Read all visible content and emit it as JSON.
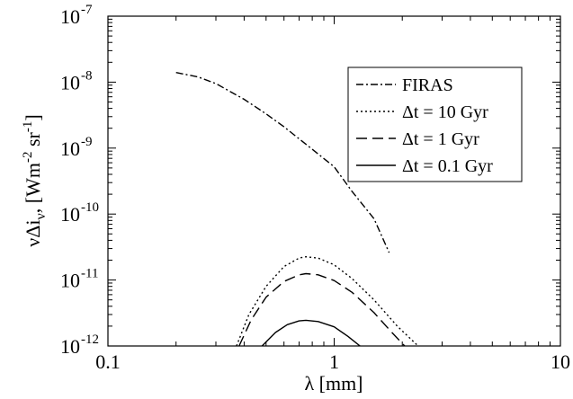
{
  "chart_data": {
    "type": "line",
    "xscale": "log",
    "yscale": "log",
    "xlim": [
      0.1,
      10
    ],
    "ylim": [
      1e-12,
      1e-07
    ],
    "xlabel": "λ [mm]",
    "ylabel": {
      "base": "νΔi",
      "sub": "ν",
      "unit_open": ", [Wm",
      "sup1": "-2",
      "unit_mid": " sr",
      "sup2": "-1",
      "unit_close": "]"
    },
    "x_ticks": [
      {
        "value": 0.1,
        "label": "0.1"
      },
      {
        "value": 1,
        "label": "1"
      },
      {
        "value": 10,
        "label": "10"
      }
    ],
    "y_ticks": [
      {
        "value": 1e-12,
        "exp": "-12"
      },
      {
        "value": 1e-11,
        "exp": "-11"
      },
      {
        "value": 1e-10,
        "exp": "-10"
      },
      {
        "value": 1e-09,
        "exp": "-9"
      },
      {
        "value": 1e-08,
        "exp": "-8"
      },
      {
        "value": 1e-07,
        "exp": "-7"
      }
    ],
    "y_tick_base": "10",
    "grid": false,
    "legend_position": "top-right",
    "series": [
      {
        "name": "FIRAS",
        "dash": "dashdot",
        "points": [
          [
            0.2,
            1.4e-08
          ],
          [
            0.25,
            1.2e-08
          ],
          [
            0.3,
            9.5e-09
          ],
          [
            0.4,
            5.5e-09
          ],
          [
            0.5,
            3.3e-09
          ],
          [
            0.6,
            2.1e-09
          ],
          [
            0.8,
            9.6e-10
          ],
          [
            1.0,
            5.2e-10
          ],
          [
            1.2,
            2.2e-10
          ],
          [
            1.5,
            8.5e-11
          ],
          [
            1.75,
            2.6e-11
          ]
        ]
      },
      {
        "name": "Δt = 10 Gyr",
        "dash": "dotted",
        "points": [
          [
            0.37,
            1e-12
          ],
          [
            0.42,
            3e-12
          ],
          [
            0.5,
            8e-12
          ],
          [
            0.6,
            1.6e-11
          ],
          [
            0.7,
            2.15e-11
          ],
          [
            0.75,
            2.25e-11
          ],
          [
            0.85,
            2.15e-11
          ],
          [
            1.0,
            1.7e-11
          ],
          [
            1.2,
            1.05e-11
          ],
          [
            1.5,
            5e-12
          ],
          [
            1.9,
            2e-12
          ],
          [
            2.35,
            1e-12
          ]
        ]
      },
      {
        "name": "Δt = 1 Gyr",
        "dash": "dashed",
        "points": [
          [
            0.38,
            1e-12
          ],
          [
            0.43,
            2.5e-12
          ],
          [
            0.5,
            5.5e-12
          ],
          [
            0.6,
            9.5e-12
          ],
          [
            0.7,
            1.2e-11
          ],
          [
            0.75,
            1.25e-11
          ],
          [
            0.85,
            1.2e-11
          ],
          [
            1.0,
            9.8e-12
          ],
          [
            1.2,
            6.5e-12
          ],
          [
            1.5,
            3.2e-12
          ],
          [
            1.8,
            1.6e-12
          ],
          [
            2.05,
            1e-12
          ]
        ]
      },
      {
        "name": "Δt = 0.1 Gyr",
        "dash": "solid",
        "points": [
          [
            0.48,
            1e-12
          ],
          [
            0.55,
            1.6e-12
          ],
          [
            0.62,
            2.1e-12
          ],
          [
            0.7,
            2.4e-12
          ],
          [
            0.75,
            2.45e-12
          ],
          [
            0.85,
            2.35e-12
          ],
          [
            1.0,
            1.95e-12
          ],
          [
            1.15,
            1.4e-12
          ],
          [
            1.3,
            1e-12
          ]
        ]
      }
    ]
  }
}
